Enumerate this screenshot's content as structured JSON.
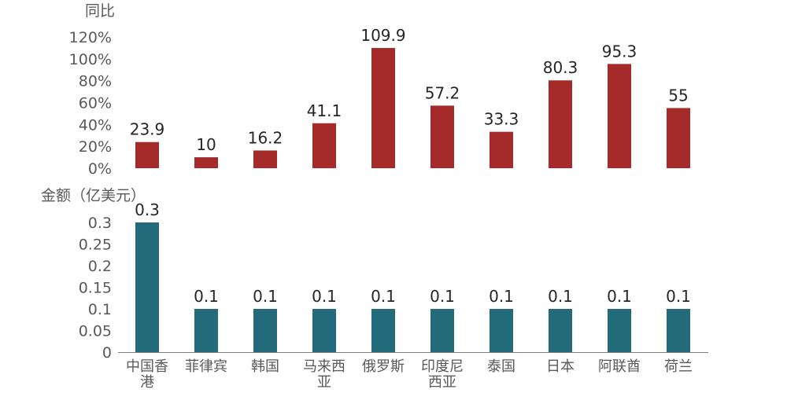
{
  "chart_data": {
    "type": "bar",
    "categories": [
      [
        "中国香",
        "港"
      ],
      [
        "菲律宾"
      ],
      [
        "韩国"
      ],
      [
        "马来西",
        "亚"
      ],
      [
        "俄罗斯"
      ],
      [
        "印度尼",
        "西亚"
      ],
      [
        "泰国"
      ],
      [
        "日本"
      ],
      [
        "阿联酋"
      ],
      [
        "荷兰"
      ]
    ],
    "colors": {
      "top": "#A52A2A",
      "bottom": "#236A7A"
    },
    "panels": [
      {
        "ylabel": "同比",
        "ticks": [
          "0%",
          "20%",
          "40%",
          "60%",
          "80%",
          "100%",
          "120%"
        ],
        "tick_values": [
          0,
          20,
          40,
          60,
          80,
          100,
          120
        ],
        "ylim": [
          0,
          120
        ],
        "values": [
          23.9,
          10,
          16.2,
          41.1,
          109.9,
          57.2,
          33.3,
          80.3,
          95.3,
          55
        ],
        "labels": [
          "23.9",
          "10",
          "16.2",
          "41.1",
          "109.9",
          "57.2",
          "33.3",
          "80.3",
          "95.3",
          "55"
        ]
      },
      {
        "ylabel": "金额（亿美元）",
        "ticks": [
          "0",
          "0.05",
          "0.1",
          "0.15",
          "0.2",
          "0.25",
          "0.3"
        ],
        "tick_values": [
          0,
          0.05,
          0.1,
          0.15,
          0.2,
          0.25,
          0.3
        ],
        "ylim": [
          0,
          0.3
        ],
        "values": [
          0.3,
          0.1,
          0.1,
          0.1,
          0.1,
          0.1,
          0.1,
          0.1,
          0.1,
          0.1
        ],
        "labels": [
          "0.3",
          "0.1",
          "0.1",
          "0.1",
          "0.1",
          "0.1",
          "0.1",
          "0.1",
          "0.1",
          "0.1"
        ]
      }
    ]
  }
}
